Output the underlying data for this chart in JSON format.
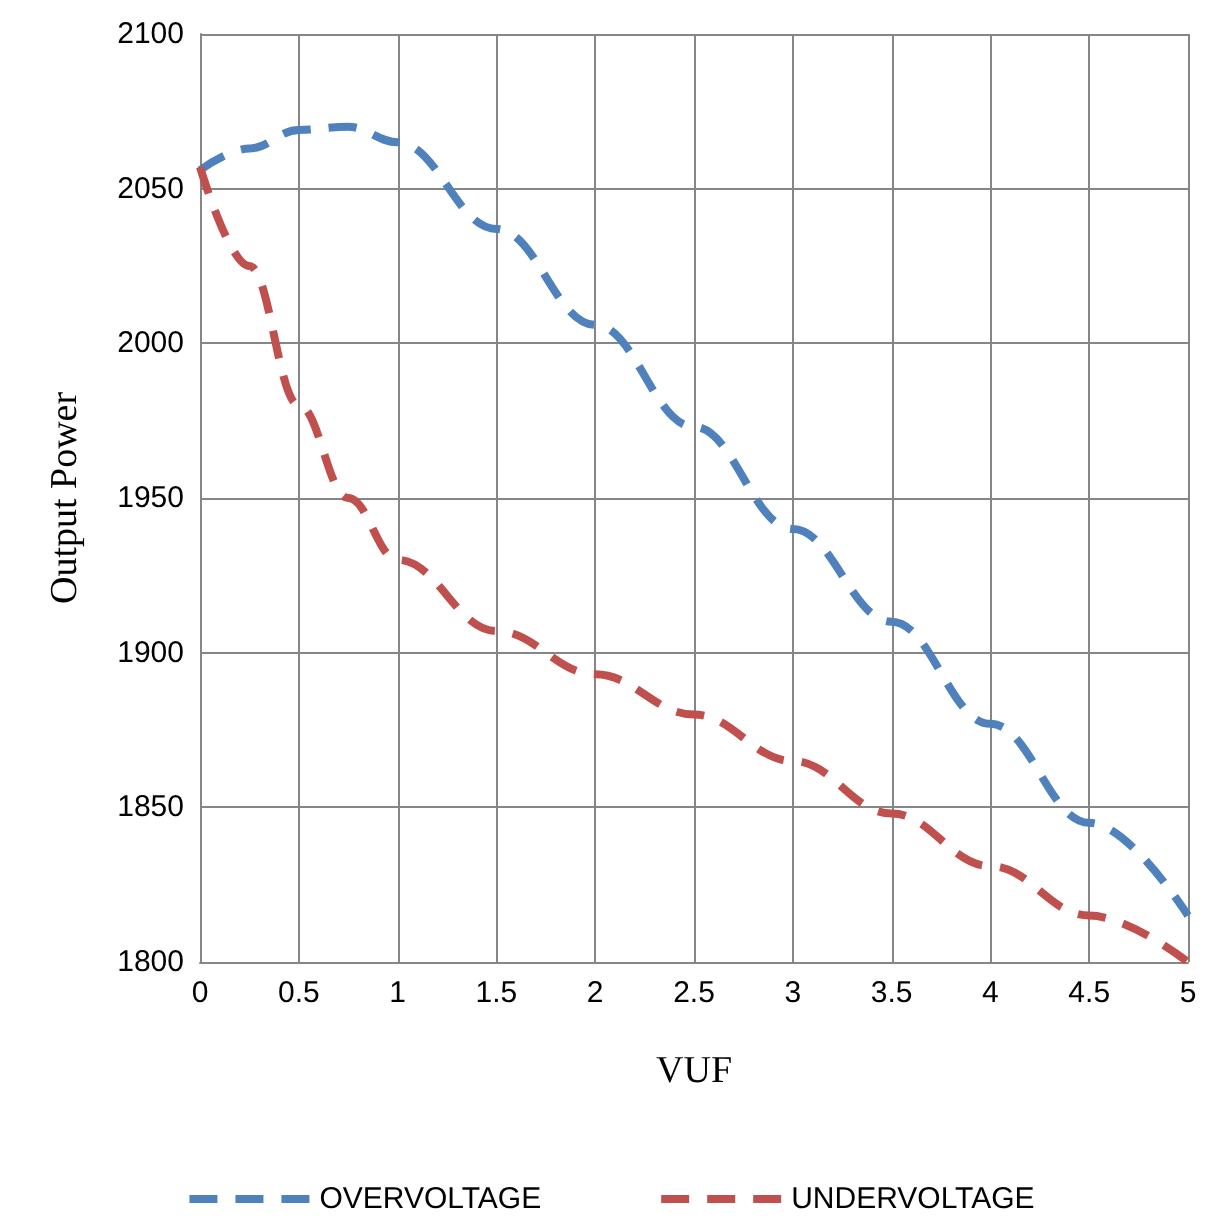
{
  "chart_data": {
    "type": "line",
    "xlabel": "VUF",
    "ylabel": "Output Power",
    "x": [
      0,
      0.25,
      0.5,
      0.75,
      1,
      1.5,
      2,
      2.5,
      3,
      3.5,
      4,
      4.5,
      5
    ],
    "series": [
      {
        "name": "OVERVOLTAGE",
        "color": "#4f81bd",
        "values": [
          2056,
          2063,
          2069,
          2070,
          2065,
          2037,
          2006,
          1973,
          1940,
          1910,
          1877,
          1845,
          1815
        ]
      },
      {
        "name": "UNDERVOLTAGE",
        "color": "#c0504d",
        "values": [
          2057,
          2025,
          1980,
          1950,
          1930,
          1907,
          1893,
          1880,
          1865,
          1848,
          1831,
          1815,
          1800
        ]
      }
    ],
    "xlim": [
      0,
      5
    ],
    "xticks": [
      0,
      0.5,
      1,
      1.5,
      2,
      2.5,
      3,
      3.5,
      4,
      4.5,
      5
    ],
    "ylim": [
      1800,
      2100
    ],
    "yticks": [
      1800,
      1850,
      1900,
      1950,
      2000,
      2050,
      2100
    ],
    "grid": true,
    "legend": "bottom",
    "marker": "none",
    "line_style": "dashed"
  }
}
